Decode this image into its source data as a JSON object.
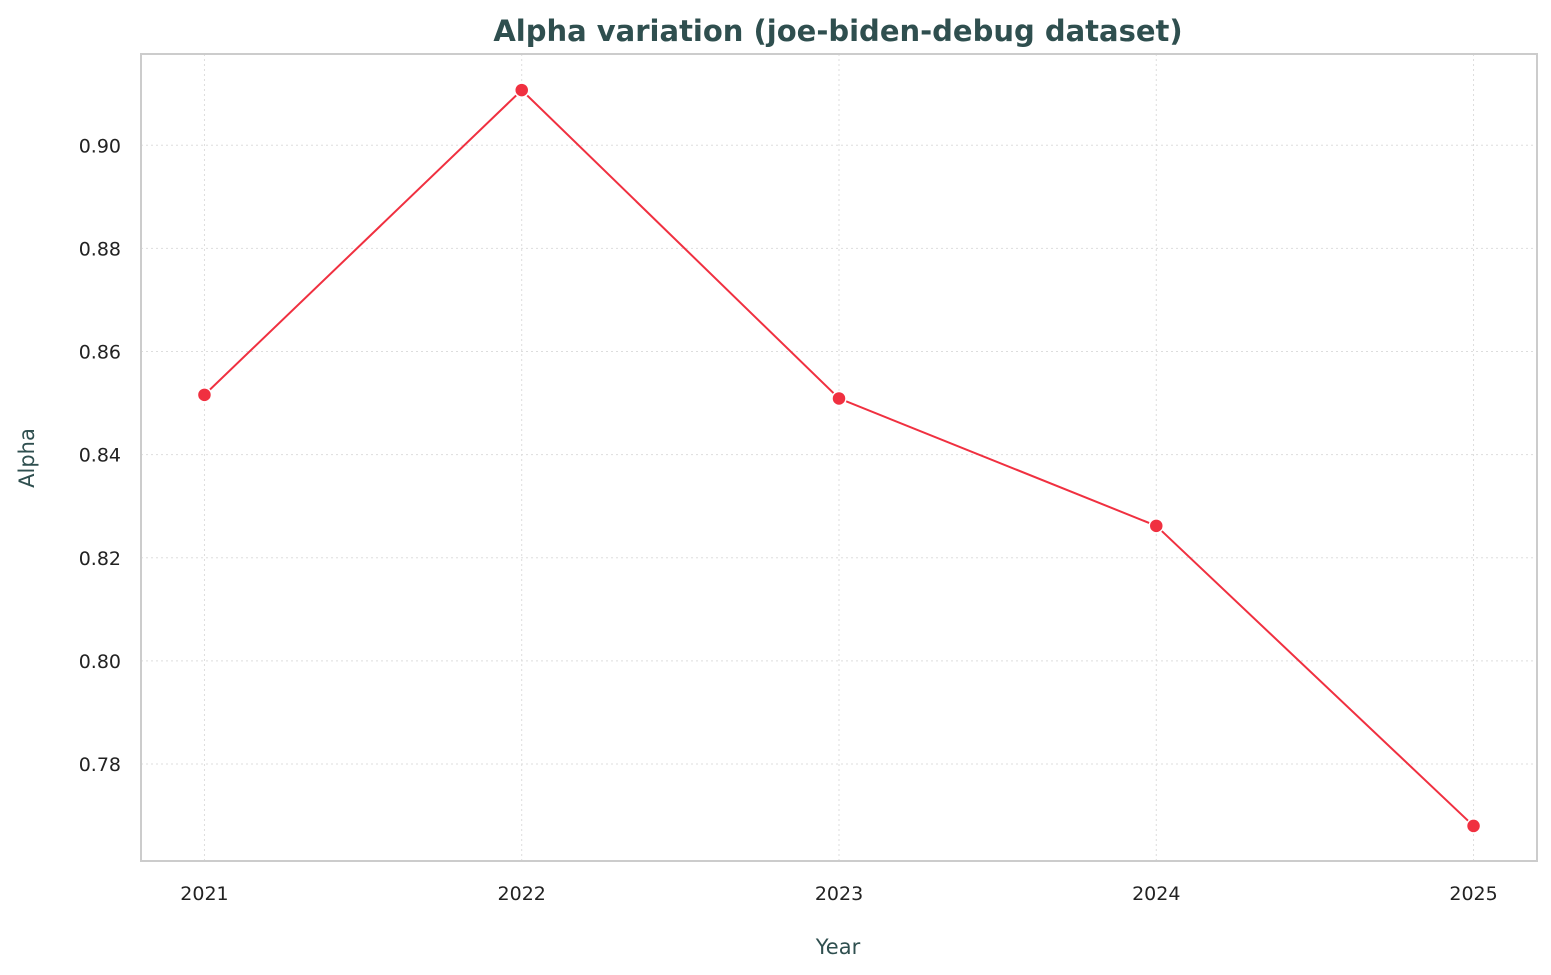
{
  "chart_data": {
    "type": "line",
    "title": "Alpha variation (joe-biden-debug dataset)",
    "xlabel": "Year",
    "ylabel": "Alpha",
    "x": [
      "2021",
      "2022",
      "2023",
      "2024",
      "2025"
    ],
    "series": [
      {
        "values": [
          0.8516,
          0.9107,
          0.8509,
          0.8262,
          0.768
        ],
        "color": "#f03040"
      }
    ],
    "xlim": [
      2020.8,
      2025.2
    ],
    "ylim": [
      0.7612,
      0.9177
    ],
    "yticks": [
      "0.78",
      "0.80",
      "0.82",
      "0.84",
      "0.86",
      "0.88",
      "0.90"
    ],
    "grid": true,
    "marker": "circle"
  }
}
